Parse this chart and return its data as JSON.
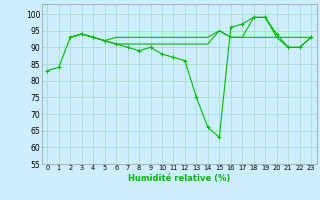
{
  "xlabel": "Humidité relative (%)",
  "background_color": "#cceeff",
  "grid_color": "#aaddcc",
  "line_color": "#00bb00",
  "xlim": [
    -0.5,
    23.5
  ],
  "ylim": [
    55,
    103
  ],
  "yticks": [
    55,
    60,
    65,
    70,
    75,
    80,
    85,
    90,
    95,
    100
  ],
  "xticks": [
    0,
    1,
    2,
    3,
    4,
    5,
    6,
    7,
    8,
    9,
    10,
    11,
    12,
    13,
    14,
    15,
    16,
    17,
    18,
    19,
    20,
    21,
    22,
    23
  ],
  "series1_x": [
    0,
    1,
    2,
    3,
    4,
    5,
    6,
    7,
    8,
    9,
    10,
    11,
    12,
    13,
    14,
    15,
    16,
    17,
    18,
    19,
    20,
    21,
    22,
    23
  ],
  "series1_y": [
    83,
    84,
    93,
    94,
    93,
    92,
    91,
    90,
    89,
    90,
    88,
    87,
    86,
    75,
    66,
    63,
    96,
    97,
    99,
    99,
    94,
    90,
    90,
    93
  ],
  "series2_x": [
    2,
    3,
    4,
    5,
    6,
    7,
    8,
    9,
    10,
    11,
    12,
    13,
    14,
    15,
    16,
    17,
    18,
    19,
    20,
    21,
    22,
    23
  ],
  "series2_y": [
    93,
    94,
    93,
    92,
    93,
    93,
    93,
    93,
    93,
    93,
    93,
    93,
    93,
    95,
    93,
    93,
    93,
    93,
    93,
    93,
    93,
    93
  ],
  "series3_x": [
    2,
    3,
    4,
    5,
    6,
    7,
    8,
    9,
    10,
    11,
    12,
    13,
    14,
    15,
    16,
    17,
    18,
    19,
    20,
    21,
    22,
    23
  ],
  "series3_y": [
    93,
    94,
    93,
    92,
    91,
    91,
    91,
    91,
    91,
    91,
    91,
    91,
    91,
    95,
    93,
    93,
    99,
    99,
    93,
    90,
    90,
    93
  ]
}
